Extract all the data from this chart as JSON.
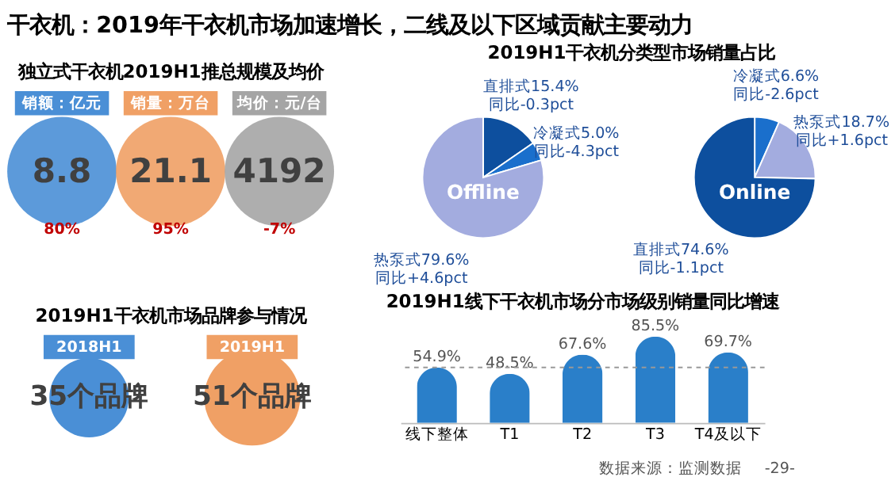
{
  "chart_data": [
    {
      "type": "other",
      "title": "干衣机：2019年干衣机市场加速增长，二线及以下区域贡献主要动力",
      "subtitle": "独立式干衣机2019H1推总规模及均价",
      "categories": [
        "销额：亿元",
        "销量：万台",
        "均价：元/台"
      ],
      "values": [
        8.8,
        21.1,
        4192
      ],
      "colors": [
        "#4a8fd6",
        "#f0a065",
        "#a5a5a5"
      ],
      "data_labels": true,
      "annotations": [
        "80%",
        "95%",
        "-7%"
      ]
    },
    {
      "type": "pie",
      "title": "2019H1干衣机分类型市场销量占比",
      "categories": [
        "直排式",
        "冷凝式",
        "热泵式"
      ],
      "values": [
        15.4,
        5.0,
        79.6
      ],
      "colors": [
        "#0d4f9e",
        "#1a6fcc",
        "#a3acdf"
      ],
      "value_labels": [
        "15.4%\n同比-0.3pct",
        "5.0%\n同比-4.3pct",
        "79.6%\n同比+4.6pct"
      ],
      "annotations": [
        "Offline"
      ]
    },
    {
      "type": "pie",
      "categories": [
        "冷凝式",
        "热泵式",
        "直排式"
      ],
      "values": [
        6.6,
        18.7,
        74.6
      ],
      "colors": [
        "#1a6fcc",
        "#a3acdf",
        "#0d4f9e"
      ],
      "value_labels": [
        "6.6%\n同比-2.6pct",
        "18.7%\n同比+1.6pct",
        "74.6%\n同比-1.1pct"
      ],
      "annotations": [
        "Online"
      ]
    },
    {
      "type": "other",
      "title": "2019H1干衣机市场品牌参与情况",
      "categories": [
        "2018H1",
        "2019H1"
      ],
      "values": [
        35,
        51
      ],
      "colors": [
        "#4a8fd6",
        "#f0a065"
      ],
      "value_labels": [
        "35个品牌",
        "51个品牌"
      ]
    },
    {
      "type": "bar",
      "title": "2019H1线下干衣机市场分市场级别销量同比增速",
      "categories": [
        "线下整体",
        "T1",
        "T2",
        "T3",
        "T4及以下"
      ],
      "values": [
        54.9,
        48.5,
        67.6,
        85.5,
        69.7
      ],
      "color": "#2a7fc9",
      "value_labels": [
        "54.9%",
        "48.5%",
        "67.6%",
        "85.5%",
        "69.7%"
      ],
      "ref_lines": [
        {
          "axis": "y",
          "value": 54.9,
          "color": "#999999",
          "line_style": "dashed"
        }
      ],
      "tick_labels": "x",
      "annotations": [
        "数据来源：监测数据",
        "-29-"
      ]
    }
  ]
}
